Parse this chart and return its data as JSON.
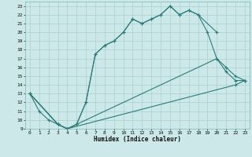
{
  "title": "",
  "xlabel": "Humidex (Indice chaleur)",
  "bg_color": "#cce8e8",
  "line_color": "#2e7b7b",
  "grid_color": "#aacfcf",
  "xlim": [
    -0.5,
    23.5
  ],
  "ylim": [
    9,
    23.5
  ],
  "xticks": [
    0,
    1,
    2,
    3,
    4,
    5,
    6,
    7,
    8,
    9,
    10,
    11,
    12,
    13,
    14,
    15,
    16,
    17,
    18,
    19,
    20,
    21,
    22,
    23
  ],
  "yticks": [
    9,
    10,
    11,
    12,
    13,
    14,
    15,
    16,
    17,
    18,
    19,
    20,
    21,
    22,
    23
  ],
  "curves": [
    {
      "x": [
        0,
        1,
        2,
        3,
        4,
        5,
        6,
        7,
        8,
        9,
        10,
        11,
        12,
        13,
        14,
        15,
        16,
        17,
        18,
        20
      ],
      "y": [
        13,
        11,
        10,
        9.5,
        9,
        9.5,
        12,
        17.5,
        18.5,
        19,
        20,
        21.5,
        21,
        21.5,
        22,
        23,
        22,
        22.5,
        22,
        20
      ]
    },
    {
      "x": [
        0,
        3,
        4,
        5,
        6,
        7,
        8,
        9,
        10,
        11,
        12,
        13,
        14,
        15,
        16,
        17,
        18,
        19,
        20,
        21,
        22,
        23
      ],
      "y": [
        13,
        9.5,
        9,
        9.5,
        12,
        17.5,
        18.5,
        19,
        20,
        21.5,
        21,
        21.5,
        22,
        23,
        22,
        22.5,
        22,
        20,
        17,
        15.5,
        14.5,
        14.5
      ]
    },
    {
      "x": [
        0,
        3,
        4,
        20,
        21,
        22,
        23
      ],
      "y": [
        13,
        9.5,
        9,
        17,
        16,
        15,
        14.5
      ]
    },
    {
      "x": [
        0,
        3,
        4,
        22,
        23
      ],
      "y": [
        13,
        9.5,
        9,
        14,
        14.5
      ]
    }
  ]
}
